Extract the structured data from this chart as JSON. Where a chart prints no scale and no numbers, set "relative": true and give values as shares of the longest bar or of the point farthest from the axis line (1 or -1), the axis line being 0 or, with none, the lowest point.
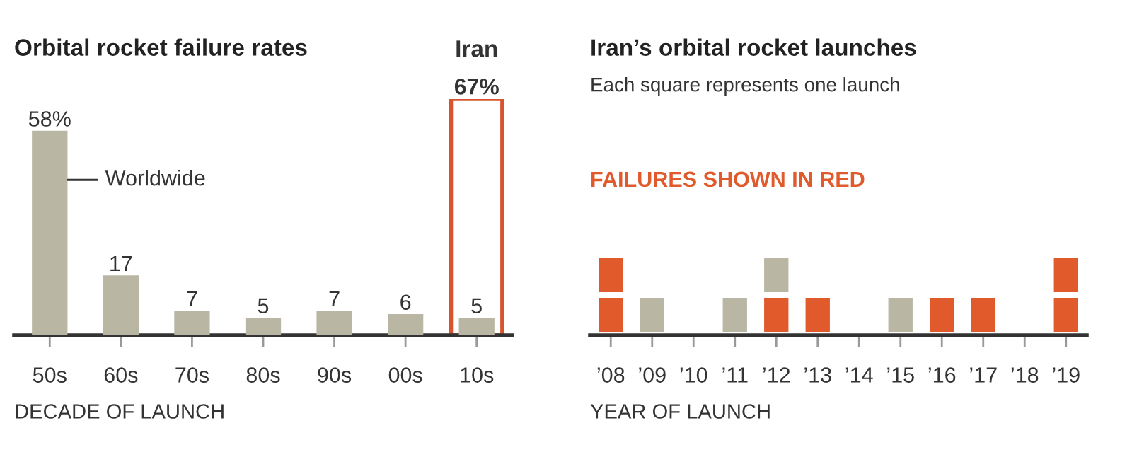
{
  "chart_data": [
    {
      "type": "bar",
      "title": "Orbital rocket failure rates",
      "xlabel": "DECADE OF LAUNCH",
      "categories": [
        "50s",
        "60s",
        "70s",
        "80s",
        "90s",
        "00s",
        "10s"
      ],
      "series": [
        {
          "name": "Worldwide",
          "color": "#b9b7a4",
          "values": [
            58,
            17,
            7,
            5,
            7,
            6,
            5
          ],
          "value_labels": [
            "58%",
            "17",
            "7",
            "5",
            "7",
            "6",
            "5"
          ]
        },
        {
          "name": "Iran",
          "color": "#d9542c",
          "values": [
            null,
            null,
            null,
            null,
            null,
            null,
            67
          ],
          "value_labels": [
            null,
            null,
            null,
            null,
            null,
            null,
            "67%"
          ]
        }
      ],
      "tick_labels": "x"
    },
    {
      "type": "bar",
      "title": "Iran’s orbital rocket launches",
      "subtitle": "Each square represents one launch",
      "xlabel": "YEAR OF LAUNCH",
      "annotations": [
        "FAILURES SHOWN IN RED"
      ],
      "categories": [
        "’08",
        "’09",
        "’10",
        "’11",
        "’12",
        "’13",
        "’14",
        "’15",
        "’16",
        "’17",
        "’18",
        "’19"
      ],
      "stacked": true,
      "relative": true,
      "series": [
        {
          "values": [
            0.5,
            0.5,
            null,
            0.5,
            0.5,
            0.5,
            null,
            0.5,
            0.5,
            0.5,
            null,
            0.5
          ],
          "colors": [
            "#e05a2c",
            "#b9b7a4",
            null,
            "#b9b7a4",
            "#e05a2c",
            "#e05a2c",
            null,
            "#b9b7a4",
            "#e05a2c",
            "#e05a2c",
            null,
            "#e05a2c"
          ]
        },
        {
          "values": [
            0.5,
            null,
            null,
            null,
            0.5,
            null,
            null,
            null,
            null,
            null,
            null,
            0.5
          ],
          "colors": [
            "#e05a2c",
            null,
            null,
            null,
            "#b9b7a4",
            null,
            null,
            null,
            null,
            null,
            null,
            "#e05a2c"
          ]
        }
      ]
    }
  ]
}
